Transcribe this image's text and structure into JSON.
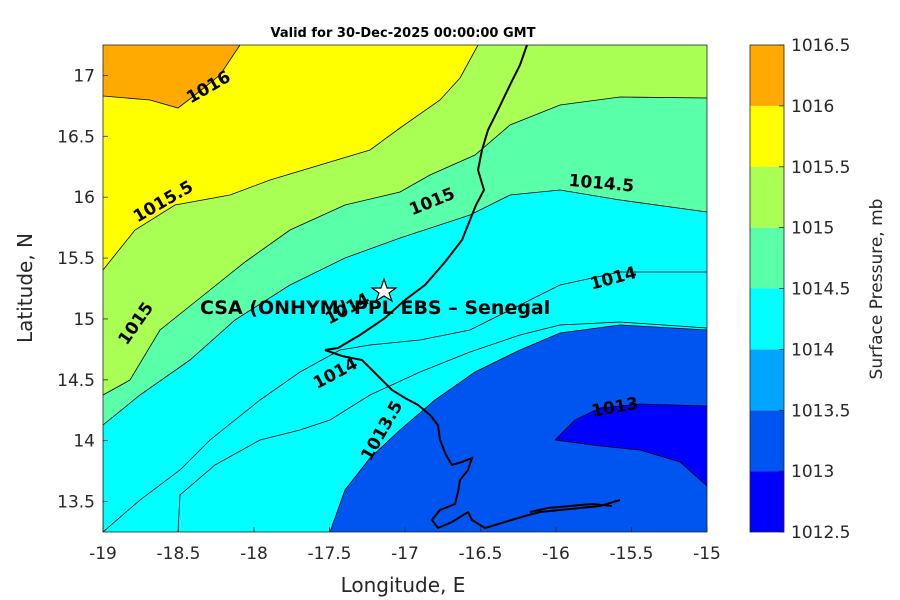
{
  "chart_data": {
    "type": "contour",
    "title": "Valid for 30-Dec-2025 00:00:00 GMT",
    "xlabel": "Longitude, E",
    "ylabel": "Latitude, N",
    "xlim": [
      -19,
      -15
    ],
    "ylim": [
      13.25,
      17.25
    ],
    "xticks": [
      "-19",
      "-18.5",
      "-18",
      "-17.5",
      "-17",
      "-16.5",
      "-16",
      "-15.5",
      "-15"
    ],
    "xtick_values": [
      -19,
      -18.5,
      -18,
      -17.5,
      -17,
      -16.5,
      -16,
      -15.5,
      -15
    ],
    "yticks": [
      "13.5",
      "14",
      "14.5",
      "15",
      "15.5",
      "16",
      "16.5",
      "17"
    ],
    "ytick_values": [
      13.5,
      14,
      14.5,
      15,
      15.5,
      16,
      16.5,
      17
    ],
    "colorbar": {
      "label": "Surface Pressure, mb",
      "levels": [
        1012.5,
        1013,
        1013.5,
        1014,
        1014.5,
        1015,
        1015.5,
        1016,
        1016.5
      ],
      "tick_labels": [
        "1012.5",
        "1013",
        "1013.5",
        "1014",
        "1014.5",
        "1015",
        "1015.5",
        "1016",
        "1016.5"
      ],
      "colors": [
        "#0000ff",
        "#0055f0",
        "#00a5ff",
        "#00ffff",
        "#5affaa",
        "#aaff55",
        "#ffff00",
        "#ffaa00",
        "#ff5500"
      ]
    },
    "contour_labels": [
      {
        "text": "1016",
        "lon": -18.3,
        "lat": 16.9
      },
      {
        "text": "1015.5",
        "lon": -18.6,
        "lat": 15.96
      },
      {
        "text": "1015",
        "lon": -16.82,
        "lat": 15.96
      },
      {
        "text": "1015",
        "lon": -18.78,
        "lat": 14.96
      },
      {
        "text": "1014.5",
        "lon": -15.7,
        "lat": 16.11
      },
      {
        "text": "1014",
        "lon": -17.38,
        "lat": 15.08
      },
      {
        "text": "1014",
        "lon": -15.62,
        "lat": 15.33
      },
      {
        "text": "1014",
        "lon": -17.46,
        "lat": 14.55
      },
      {
        "text": "1013.5",
        "lon": -17.15,
        "lat": 14.08
      },
      {
        "text": "1013",
        "lon": -15.61,
        "lat": 14.27
      }
    ],
    "site": {
      "label": "CSA (ONHYM) PPL EBS  – Senegal",
      "lon": -17.13,
      "lat": 15.23
    },
    "contour_levels": [
      1013,
      1013.5,
      1014,
      1014.5,
      1015,
      1015.5,
      1016
    ]
  }
}
